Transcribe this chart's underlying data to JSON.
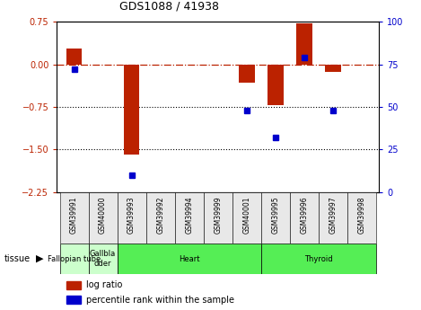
{
  "title": "GDS1088 / 41938",
  "samples": [
    "GSM39991",
    "GSM40000",
    "GSM39993",
    "GSM39992",
    "GSM39994",
    "GSM39999",
    "GSM40001",
    "GSM39995",
    "GSM39996",
    "GSM39997",
    "GSM39998"
  ],
  "log_ratios": [
    0.28,
    0.0,
    -1.58,
    0.0,
    0.0,
    0.0,
    -0.32,
    -0.72,
    0.72,
    -0.13,
    0.0
  ],
  "percentile_ranks": [
    72,
    0,
    10,
    0,
    0,
    0,
    48,
    32,
    79,
    48,
    0
  ],
  "show_percentile": [
    true,
    false,
    true,
    false,
    false,
    false,
    true,
    true,
    true,
    true,
    false
  ],
  "ylim_left": [
    -2.25,
    0.75
  ],
  "ylim_right": [
    0,
    100
  ],
  "yticks_left": [
    0.75,
    0,
    -0.75,
    -1.5,
    -2.25
  ],
  "yticks_right": [
    100,
    75,
    50,
    25,
    0
  ],
  "bar_color": "#bb2200",
  "dot_color": "#0000cc",
  "zero_line_color": "#bb2200",
  "tissue_groups": [
    {
      "label": "Fallopian tube",
      "start": 0,
      "end": 1,
      "color": "#ccffcc"
    },
    {
      "label": "Gallbla\ndder",
      "start": 1,
      "end": 2,
      "color": "#ccffcc"
    },
    {
      "label": "Heart",
      "start": 2,
      "end": 7,
      "color": "#55ee55"
    },
    {
      "label": "Thyroid",
      "start": 7,
      "end": 11,
      "color": "#55ee55"
    }
  ],
  "legend_log_ratio": "log ratio",
  "legend_percentile": "percentile rank within the sample"
}
